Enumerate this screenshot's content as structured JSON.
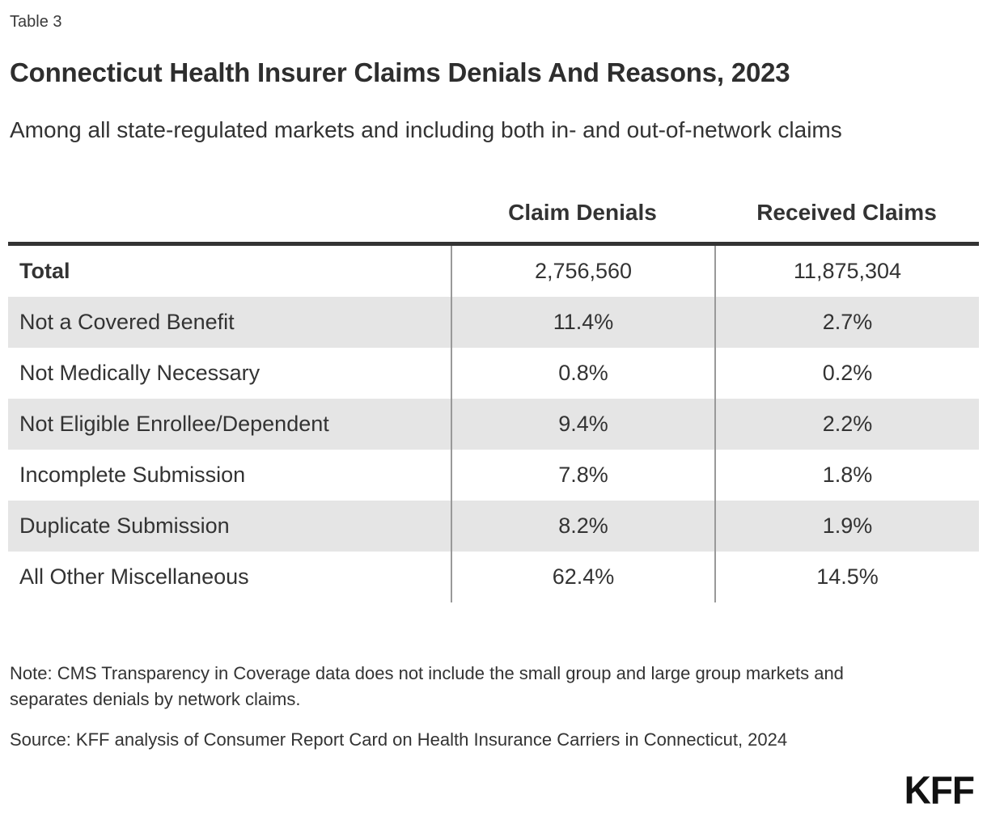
{
  "header": {
    "table_label": "Table 3",
    "title": "Connecticut Health Insurer Claims Denials And Reasons, 2023",
    "subtitle": "Among all state-regulated markets and including both in- and out-of-network claims"
  },
  "table": {
    "columns": [
      "",
      "Claim Denials",
      "Received Claims"
    ],
    "rows": [
      {
        "label": "Total",
        "claim_denials": "2,756,560",
        "received_claims": "11,875,304",
        "bold": true,
        "shaded": false
      },
      {
        "label": "Not a Covered Benefit",
        "claim_denials": "11.4%",
        "received_claims": "2.7%",
        "bold": false,
        "shaded": true
      },
      {
        "label": "Not Medically Necessary",
        "claim_denials": "0.8%",
        "received_claims": "0.2%",
        "bold": false,
        "shaded": false
      },
      {
        "label": "Not Eligible Enrollee/Dependent",
        "claim_denials": "9.4%",
        "received_claims": "2.2%",
        "bold": false,
        "shaded": true
      },
      {
        "label": "Incomplete Submission",
        "claim_denials": "7.8%",
        "received_claims": "1.8%",
        "bold": false,
        "shaded": false
      },
      {
        "label": "Duplicate Submission",
        "claim_denials": "8.2%",
        "received_claims": "1.9%",
        "bold": false,
        "shaded": true
      },
      {
        "label": "All Other Miscellaneous",
        "claim_denials": "62.4%",
        "received_claims": "14.5%",
        "bold": false,
        "shaded": false
      }
    ]
  },
  "chart_data": {
    "type": "table",
    "title": "Connecticut Health Insurer Claims Denials And Reasons, 2023",
    "subtitle": "Among all state-regulated markets and including both in- and out-of-network claims",
    "columns": [
      "Claim Denials",
      "Received Claims"
    ],
    "total_row": {
      "label": "Total",
      "claim_denials": 2756560,
      "received_claims": 11875304
    },
    "categories": [
      "Not a Covered Benefit",
      "Not Medically Necessary",
      "Not Eligible Enrollee/Dependent",
      "Incomplete Submission",
      "Duplicate Submission",
      "All Other Miscellaneous"
    ],
    "series": [
      {
        "name": "Claim Denials (% of denials)",
        "values": [
          11.4,
          0.8,
          9.4,
          7.8,
          8.2,
          62.4
        ]
      },
      {
        "name": "Received Claims (% of received claims)",
        "values": [
          2.7,
          0.2,
          2.2,
          1.8,
          1.9,
          14.5
        ]
      }
    ]
  },
  "footer": {
    "note": "Note: CMS Transparency in Coverage data does not include the small group and large group markets and separates denials by network claims.",
    "source": "Source: KFF analysis of Consumer Report Card on Health Insurance Carriers in Connecticut, 2024",
    "logo": "KFF"
  },
  "colors": {
    "text": "#333333",
    "row_shade": "#e5e5e5",
    "divider": "#999999",
    "rule": "#333333",
    "logo": "#111111"
  }
}
